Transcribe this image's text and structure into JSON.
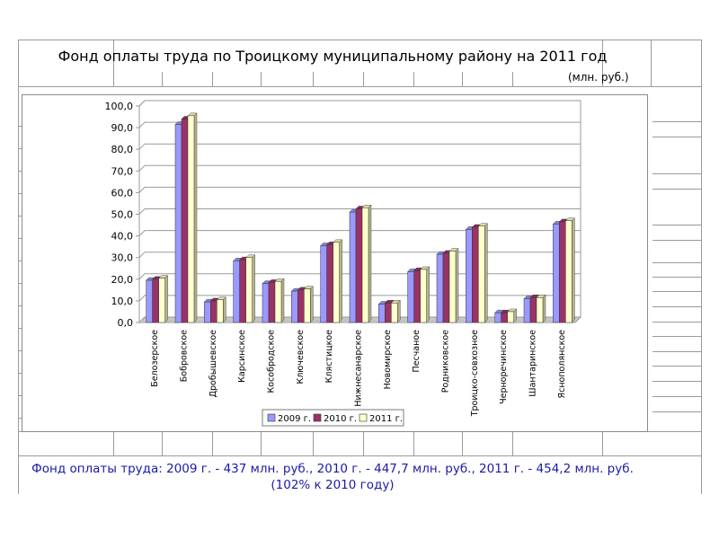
{
  "title": "Фонд оплаты труда по Троицкому муниципальному району на 2011 год",
  "units": "(млн. руб.)",
  "footer": {
    "line1": "Фонд оплаты труда: 2009 г. - 437 млн. руб., 2010 г. - 447,7 млн. руб., 2011 г. - 454,2 млн. руб.",
    "line2": "(102% к 2010 году)"
  },
  "colors": {
    "series_2009": "#9999ff",
    "series_2010": "#993366",
    "series_2011": "#ffffcc",
    "footer_text": "#1a1aa8"
  },
  "chart_data": {
    "type": "bar",
    "title": "",
    "xlabel": "",
    "ylabel": "",
    "ylim": [
      0,
      100
    ],
    "yticks": [
      "0,0",
      "10,0",
      "20,0",
      "30,0",
      "40,0",
      "50,0",
      "60,0",
      "70,0",
      "80,0",
      "90,0",
      "100,0"
    ],
    "grid": true,
    "legend_position": "bottom",
    "categories": [
      "Белозерское",
      "Бобровское",
      "Дробышевское",
      "Карсинское",
      "Кособродское",
      "Ключевское",
      "Клястицкое",
      "Нижнесанарское",
      "Новомирское",
      "Песчаное",
      "Родниковское",
      "Троицко-совхозное",
      "Черноречинское",
      "Шантаринское",
      "Яснополянское"
    ],
    "series": [
      {
        "name": "2009 г.",
        "values": [
          19.5,
          91.5,
          9.5,
          28.5,
          18.0,
          14.5,
          35.5,
          51.0,
          8.5,
          23.5,
          31.5,
          43.0,
          4.5,
          11.0,
          45.5
        ]
      },
      {
        "name": "2010 г.",
        "values": [
          20.0,
          94.0,
          10.0,
          29.0,
          18.5,
          15.0,
          36.0,
          52.5,
          9.0,
          24.0,
          32.0,
          44.0,
          4.5,
          11.5,
          46.5
        ]
      },
      {
        "name": "2011 г.",
        "values": [
          20.5,
          95.5,
          10.5,
          30.0,
          19.0,
          15.5,
          37.0,
          53.0,
          9.0,
          24.5,
          33.0,
          44.5,
          5.0,
          11.5,
          47.0
        ]
      }
    ]
  }
}
